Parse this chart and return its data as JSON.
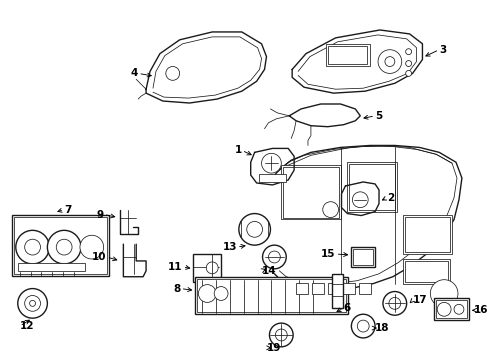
{
  "background_color": "#ffffff",
  "figure_width": 4.89,
  "figure_height": 3.6,
  "dpi": 100,
  "line_color": "#1a1a1a",
  "font_size": 7.5,
  "font_weight": "bold",
  "arrow_color": "#000000",
  "lw_main": 1.0,
  "lw_thin": 0.55,
  "lw_med": 0.75
}
